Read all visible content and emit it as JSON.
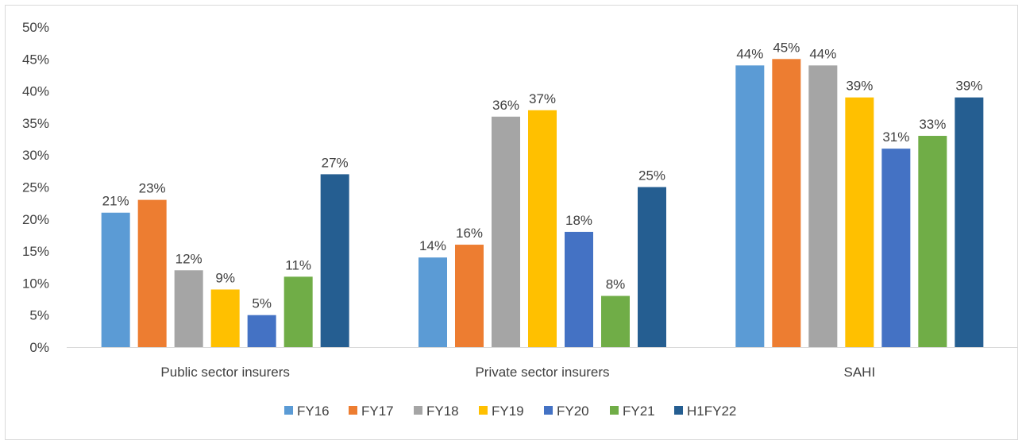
{
  "chart_data": {
    "type": "bar",
    "categories": [
      "Public sector insurers",
      "Private sector insurers",
      "SAHI"
    ],
    "series": [
      {
        "name": "FY16",
        "color": "#5b9bd5",
        "values": [
          21,
          14,
          44
        ],
        "labels": [
          "21%",
          "14%",
          "44%"
        ]
      },
      {
        "name": "FY17",
        "color": "#ed7d31",
        "values": [
          23,
          16,
          45
        ],
        "labels": [
          "23%",
          "16%",
          "45%"
        ]
      },
      {
        "name": "FY18",
        "color": "#a5a5a5",
        "values": [
          12,
          36,
          44
        ],
        "labels": [
          "12%",
          "36%",
          "44%"
        ]
      },
      {
        "name": "FY19",
        "color": "#ffc000",
        "values": [
          9,
          37,
          39
        ],
        "labels": [
          "9%",
          "37%",
          "39%"
        ]
      },
      {
        "name": "FY20",
        "color": "#4472c4",
        "values": [
          5,
          18,
          31
        ],
        "labels": [
          "5%",
          "18%",
          "31%"
        ]
      },
      {
        "name": "FY21",
        "color": "#70ad47",
        "values": [
          11,
          8,
          33
        ],
        "labels": [
          "11%",
          "8%",
          "33%"
        ]
      },
      {
        "name": "H1FY22",
        "color": "#255e91",
        "values": [
          27,
          25,
          39
        ],
        "labels": [
          "27%",
          "25%",
          "39%"
        ]
      }
    ],
    "ylim": [
      0,
      50
    ],
    "yticks": [
      "0%",
      "5%",
      "10%",
      "15%",
      "20%",
      "25%",
      "30%",
      "35%",
      "40%",
      "45%",
      "50%"
    ],
    "grid": false,
    "legend_position": "bottom"
  }
}
